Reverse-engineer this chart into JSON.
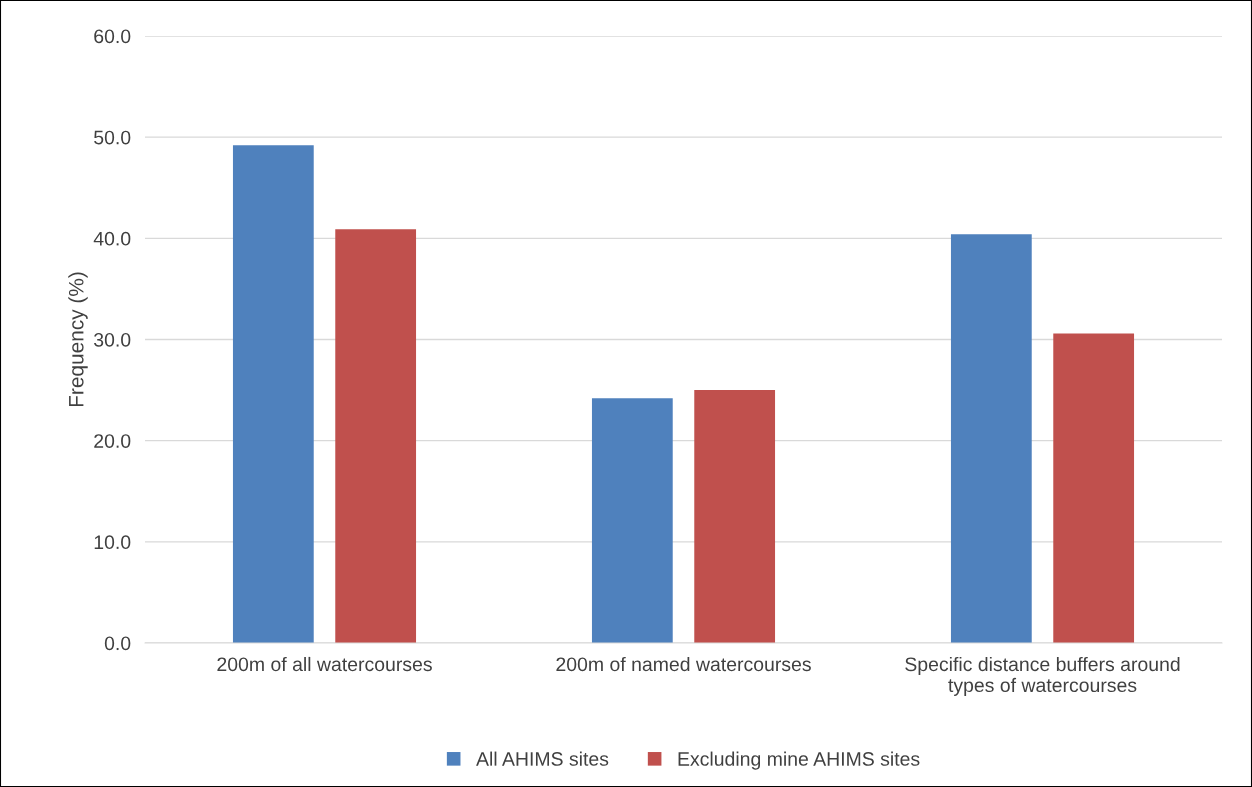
{
  "chart_data": {
    "type": "bar",
    "ylabel": "Frequency (%)",
    "categories": [
      "200m of all watercourses",
      "200m of named watercourses",
      "Specific distance buffers around types of watercourses"
    ],
    "series": [
      {
        "name": "All AHIMS sites",
        "color": "#4f81bd",
        "values": [
          49.2,
          24.2,
          40.4
        ]
      },
      {
        "name": "Excluding mine AHIMS sites",
        "color": "#c0504d",
        "values": [
          40.9,
          25.0,
          30.6
        ]
      }
    ],
    "ylim": [
      0,
      60
    ],
    "yticks": [
      {
        "value": 0,
        "label": "0.0"
      },
      {
        "value": 10,
        "label": "10.0"
      },
      {
        "value": 20,
        "label": "20.0"
      },
      {
        "value": 30,
        "label": "30.0"
      },
      {
        "value": 40,
        "label": "40.0"
      },
      {
        "value": 50,
        "label": "50.0"
      },
      {
        "value": 60,
        "label": "60.0"
      }
    ],
    "grid": "y",
    "legend": "bottom"
  }
}
